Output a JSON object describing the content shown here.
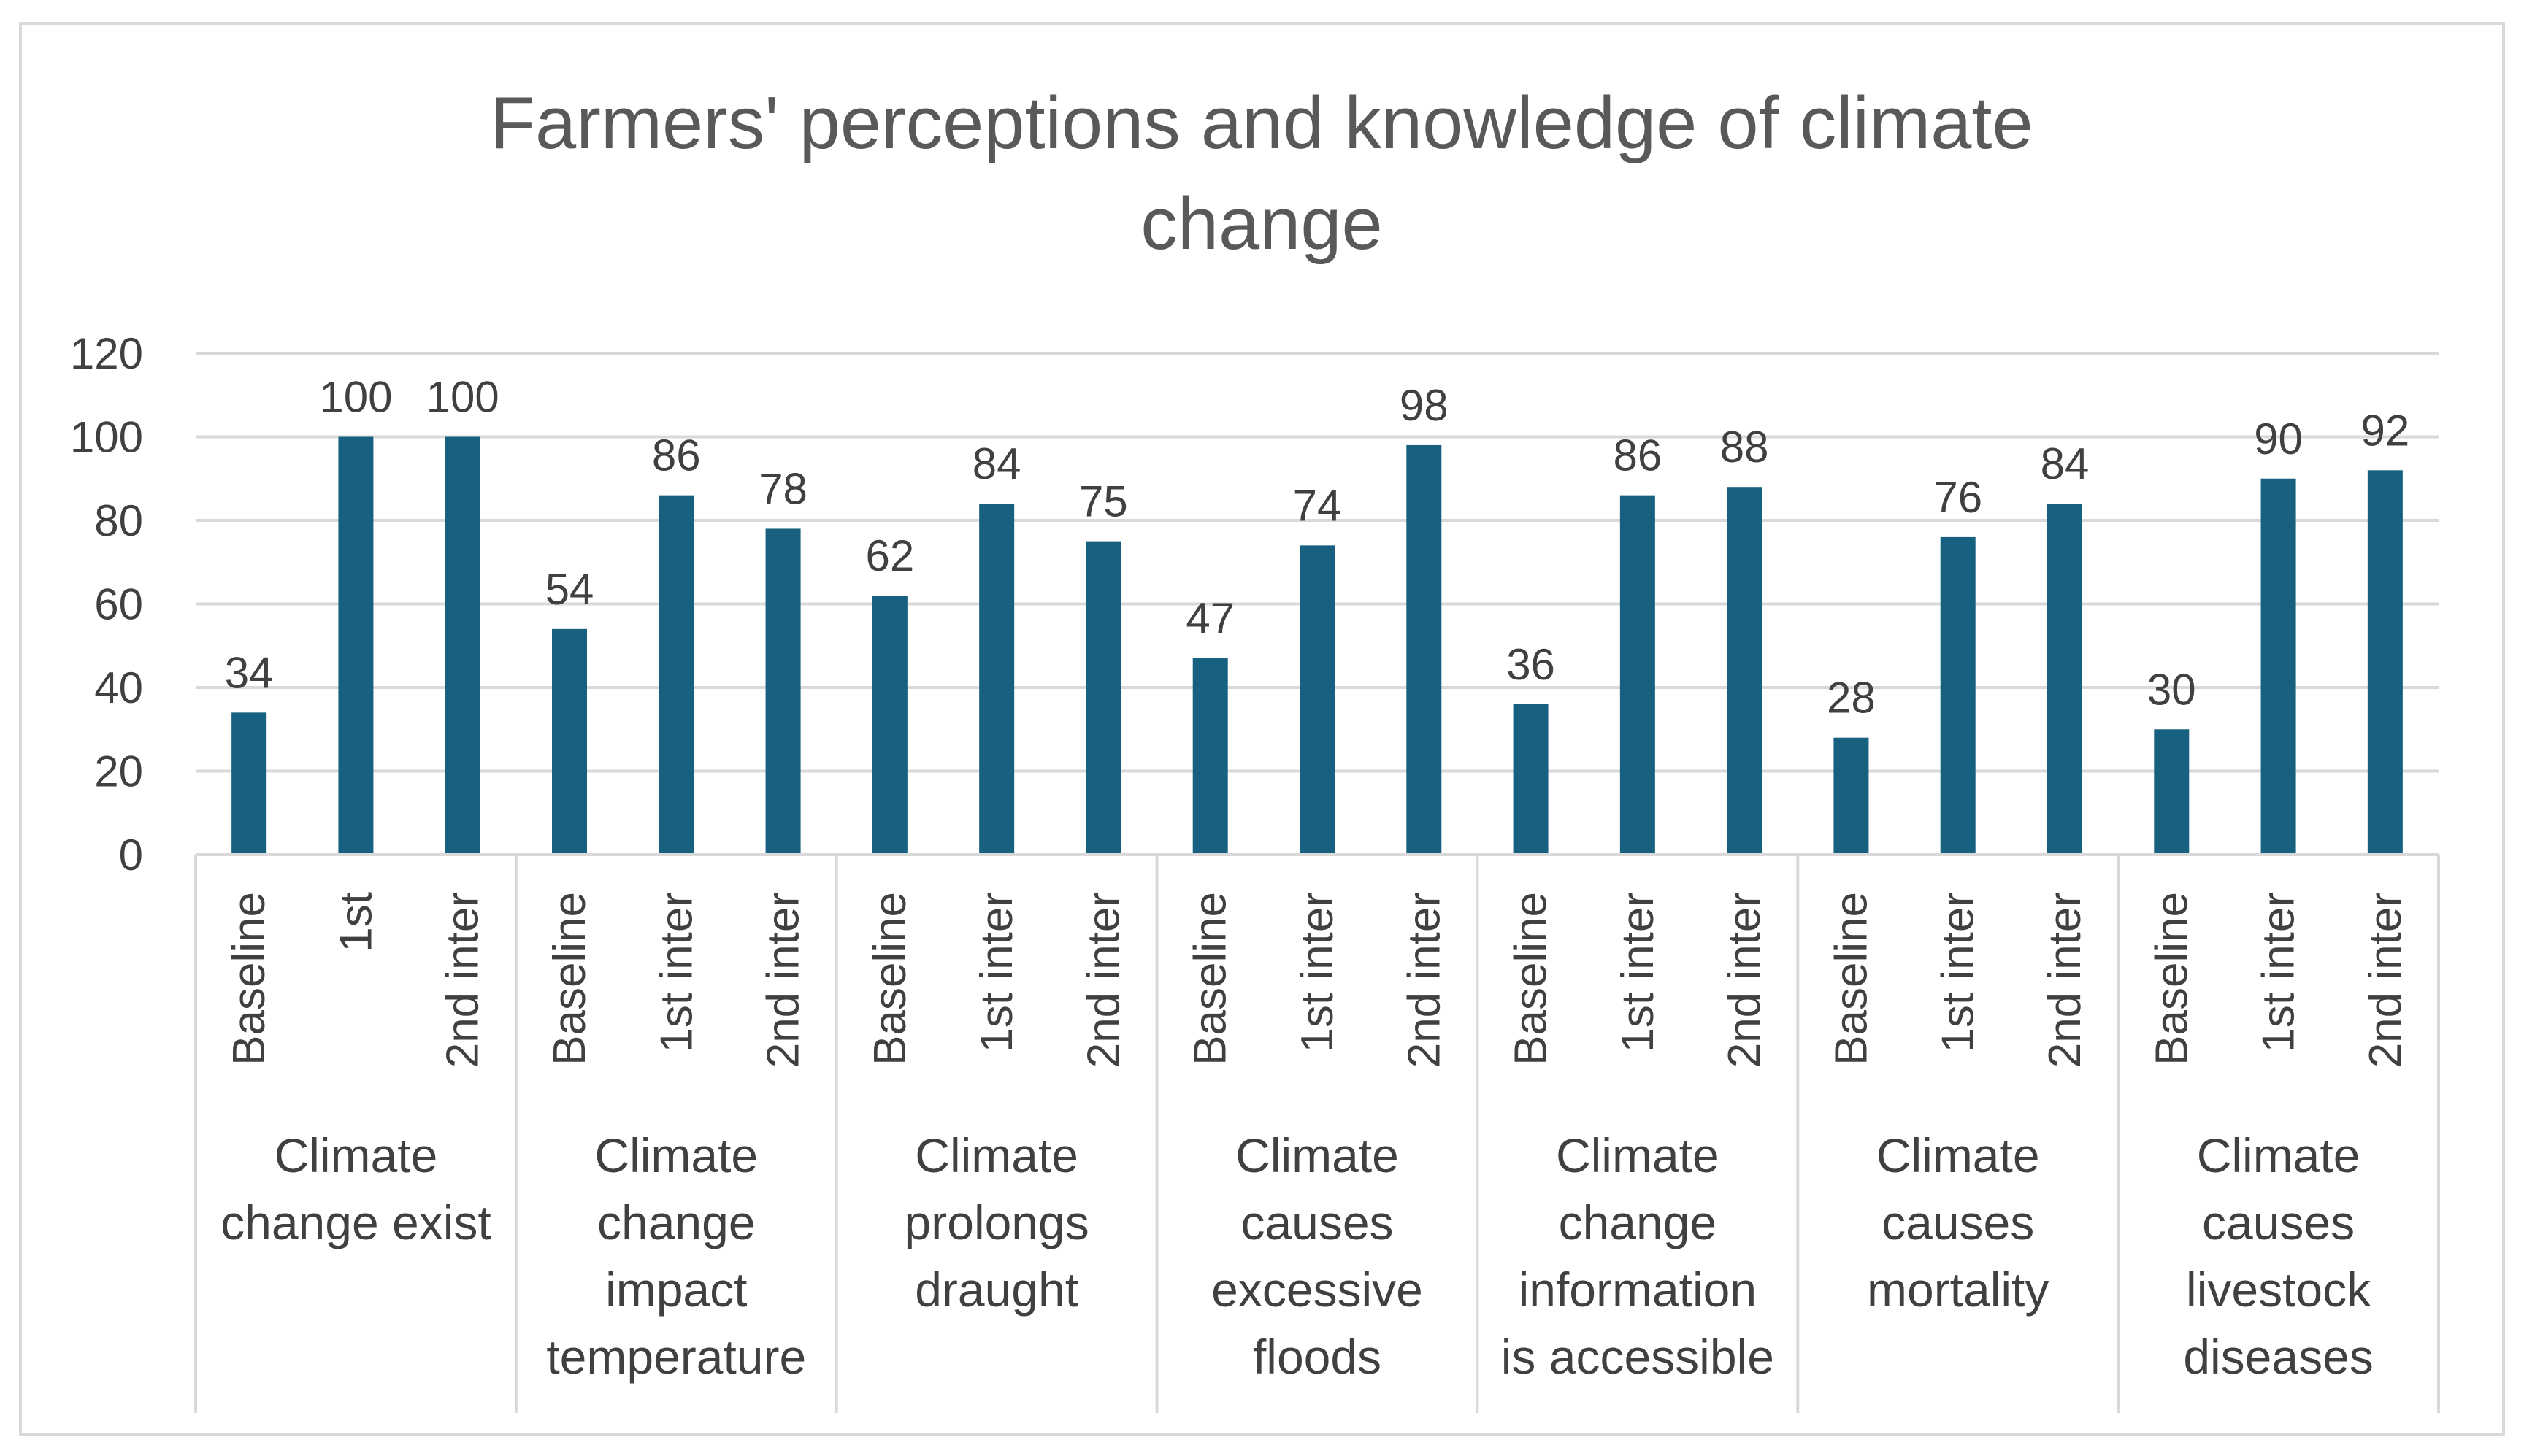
{
  "chart_data": {
    "type": "bar",
    "title_lines": [
      "Farmers' perceptions and knowledge of climate",
      "change"
    ],
    "title": "Farmers' perceptions and knowledge of climate change",
    "xlabel": "",
    "ylabel": "",
    "ylim": [
      0,
      120
    ],
    "yticks": [
      "0",
      "20",
      "40",
      "60",
      "80",
      "100",
      "120"
    ],
    "grid": true,
    "legend": "none",
    "bar_color": "#17607f",
    "grid_color": "#d9d9d9",
    "groups": [
      {
        "label_lines": [
          "Climate",
          "change exist"
        ],
        "bars": [
          {
            "label": "Baseline",
            "value": 34
          },
          {
            "label": "1st",
            "value": 100
          },
          {
            "label": "2nd inter",
            "value": 100
          }
        ]
      },
      {
        "label_lines": [
          "Climate",
          "change",
          "impact",
          "temperature"
        ],
        "bars": [
          {
            "label": "Baseline",
            "value": 54
          },
          {
            "label": "1st inter",
            "value": 86
          },
          {
            "label": "2nd inter",
            "value": 78
          }
        ]
      },
      {
        "label_lines": [
          "Climate",
          "prolongs",
          "draught"
        ],
        "bars": [
          {
            "label": "Baseline",
            "value": 62
          },
          {
            "label": "1st inter",
            "value": 84
          },
          {
            "label": "2nd inter",
            "value": 75
          }
        ]
      },
      {
        "label_lines": [
          "Climate",
          "causes",
          "excessive",
          "floods"
        ],
        "bars": [
          {
            "label": "Baseline",
            "value": 47
          },
          {
            "label": "1st inter",
            "value": 74
          },
          {
            "label": "2nd inter",
            "value": 98
          }
        ]
      },
      {
        "label_lines": [
          "Climate",
          "change",
          "information",
          "is accessible"
        ],
        "bars": [
          {
            "label": "Baseline",
            "value": 36
          },
          {
            "label": "1st inter",
            "value": 86
          },
          {
            "label": "2nd inter",
            "value": 88
          }
        ]
      },
      {
        "label_lines": [
          "Climate",
          "causes",
          "mortality"
        ],
        "bars": [
          {
            "label": "Baseline",
            "value": 28
          },
          {
            "label": "1st inter",
            "value": 76
          },
          {
            "label": "2nd inter",
            "value": 84
          }
        ]
      },
      {
        "label_lines": [
          "Climate",
          "causes",
          "livestock",
          "diseases"
        ],
        "bars": [
          {
            "label": "Baseline",
            "value": 30
          },
          {
            "label": "1st inter",
            "value": 90
          },
          {
            "label": "2nd inter",
            "value": 92
          }
        ]
      }
    ]
  }
}
